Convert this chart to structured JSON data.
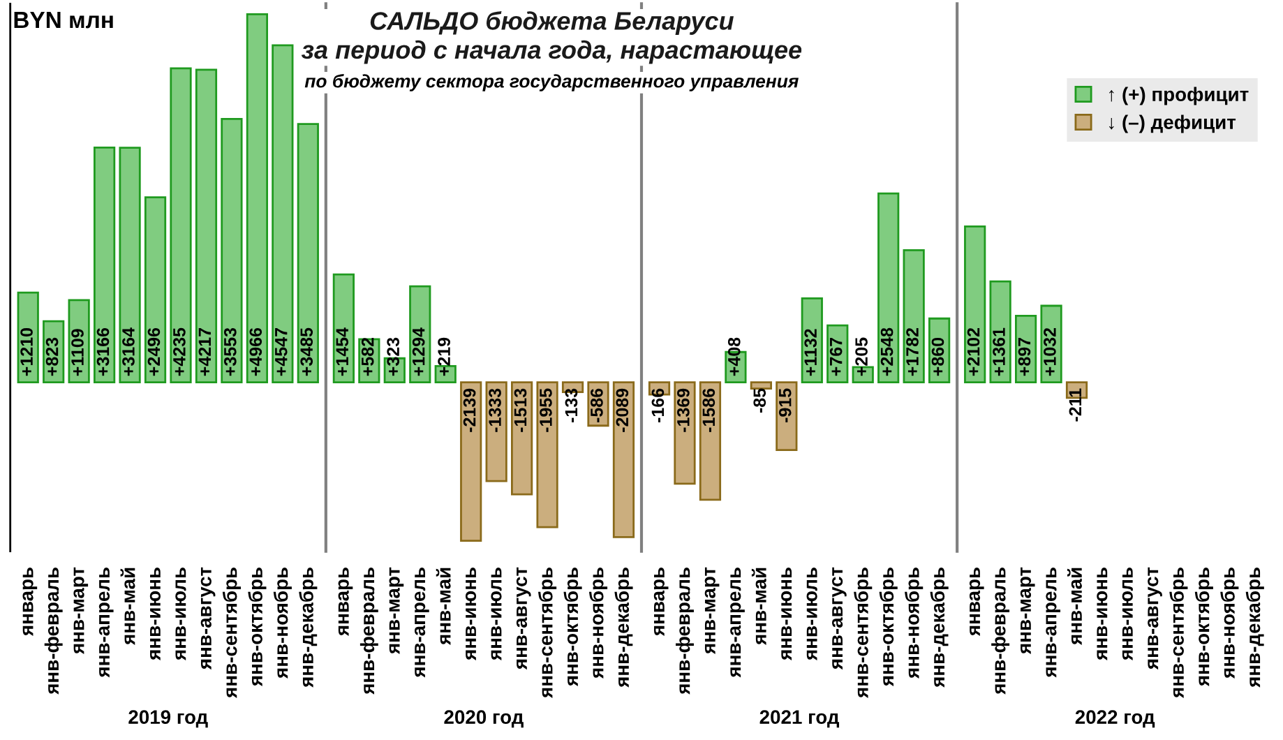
{
  "chart_data": [
    {
      "type": "bar",
      "ylabel": "BYN млн",
      "xlabel": "2019 год",
      "tick_labels": "x",
      "categories": [
        "январь",
        "янв-февраль",
        "янв-март",
        "янв-апрель",
        "янв-май",
        "янв-июнь",
        "янв-июль",
        "янв-август",
        "янв-сентябрь",
        "янв-октябрь",
        "янв-ноябрь",
        "янв-декабрь"
      ],
      "series": [
        {
          "color": "#80cc80",
          "values": [
            1210,
            823,
            1109,
            3166,
            3164,
            2496,
            4235,
            4217,
            3553,
            4966,
            4547,
            3485
          ],
          "value_labels": [
            "+1210",
            "+823",
            "+1109",
            "+3166",
            "+3164",
            "+2496",
            "+4235",
            "+4217",
            "+3553",
            "+4966",
            "+4547",
            "+3485"
          ]
        }
      ]
    },
    {
      "type": "bar",
      "title": "САЛЬДО бюджета Беларуси\nза период с начала года, нарастающее",
      "subtitle": "по бюджету сектора государственного управления",
      "xlabel": "2020 год",
      "tick_labels": "x",
      "categories": [
        "январь",
        "янв-февраль",
        "янв-март",
        "янв-апрель",
        "янв-май",
        "янв-июнь",
        "янв-июль",
        "янв-август",
        "янв-сентябрь",
        "янв-октябрь",
        "янв-ноябрь",
        "янв-декабрь"
      ],
      "series": [
        {
          "color": "#80cc80",
          "values": [
            1454,
            582,
            323,
            1294,
            219,
            null,
            null,
            null,
            null,
            null,
            null,
            null
          ],
          "value_labels": [
            "+1454",
            "+582",
            "+323",
            "+1294",
            "+219",
            null,
            null,
            null,
            null,
            null,
            null,
            null
          ]
        },
        {
          "color": "#cbae7e",
          "values": [
            null,
            null,
            null,
            null,
            null,
            -2139,
            -1333,
            -1513,
            -1955,
            -133,
            -586,
            -2089
          ],
          "value_labels": [
            null,
            null,
            null,
            null,
            null,
            "-2139",
            "-1333",
            "-1513",
            "-1955",
            "-133",
            "-586",
            "-2089"
          ]
        }
      ]
    },
    {
      "type": "bar",
      "xlabel": "2021 год",
      "tick_labels": "x",
      "categories": [
        "январь",
        "янв-февраль",
        "янв-март",
        "янв-апрель",
        "янв-май",
        "янв-июнь",
        "янв-июль",
        "янв-август",
        "янв-сентябрь",
        "янв-октябрь",
        "янв-ноябрь",
        "янв-декабрь"
      ],
      "series": [
        {
          "color": "#80cc80",
          "values": [
            null,
            null,
            null,
            408,
            null,
            null,
            1132,
            767,
            205,
            2548,
            1782,
            860
          ],
          "value_labels": [
            null,
            null,
            null,
            "+408",
            null,
            null,
            "+1132",
            "+767",
            "+205",
            "+2548",
            "+1782",
            "+860"
          ]
        },
        {
          "color": "#cbae7e",
          "values": [
            -166,
            -1369,
            -1586,
            null,
            -85,
            -915,
            null,
            null,
            null,
            null,
            null,
            null
          ],
          "value_labels": [
            "-166",
            "-1369",
            "-1586",
            null,
            "-85",
            "-915",
            null,
            null,
            null,
            null,
            null,
            null
          ]
        }
      ]
    },
    {
      "type": "bar",
      "xlabel": "2022 год",
      "tick_labels": "x",
      "legend": "top right",
      "categories": [
        "январь",
        "янв-февраль",
        "янв-март",
        "янв-апрель",
        "янв-май",
        "янв-июнь",
        "янв-июль",
        "янв-август",
        "янв-сентябрь",
        "янв-октябрь",
        "янв-ноябрь",
        "янв-декабрь"
      ],
      "series": [
        {
          "name": "↑ (+) профицит",
          "color": "#80cc80",
          "values": [
            2102,
            1361,
            897,
            1032,
            null,
            null,
            null,
            null,
            null,
            null,
            null,
            null
          ],
          "value_labels": [
            "+2102",
            "+1361",
            "+897",
            "+1032",
            null,
            null,
            null,
            null,
            null,
            null,
            null,
            null
          ]
        },
        {
          "name": "↓ (–) дефицит",
          "color": "#cbae7e",
          "values": [
            null,
            null,
            null,
            null,
            -211,
            null,
            null,
            null,
            null,
            null,
            null,
            null
          ],
          "value_labels": [
            null,
            null,
            null,
            null,
            "-211",
            null,
            null,
            null,
            null,
            null,
            null,
            null
          ]
        }
      ]
    }
  ]
}
